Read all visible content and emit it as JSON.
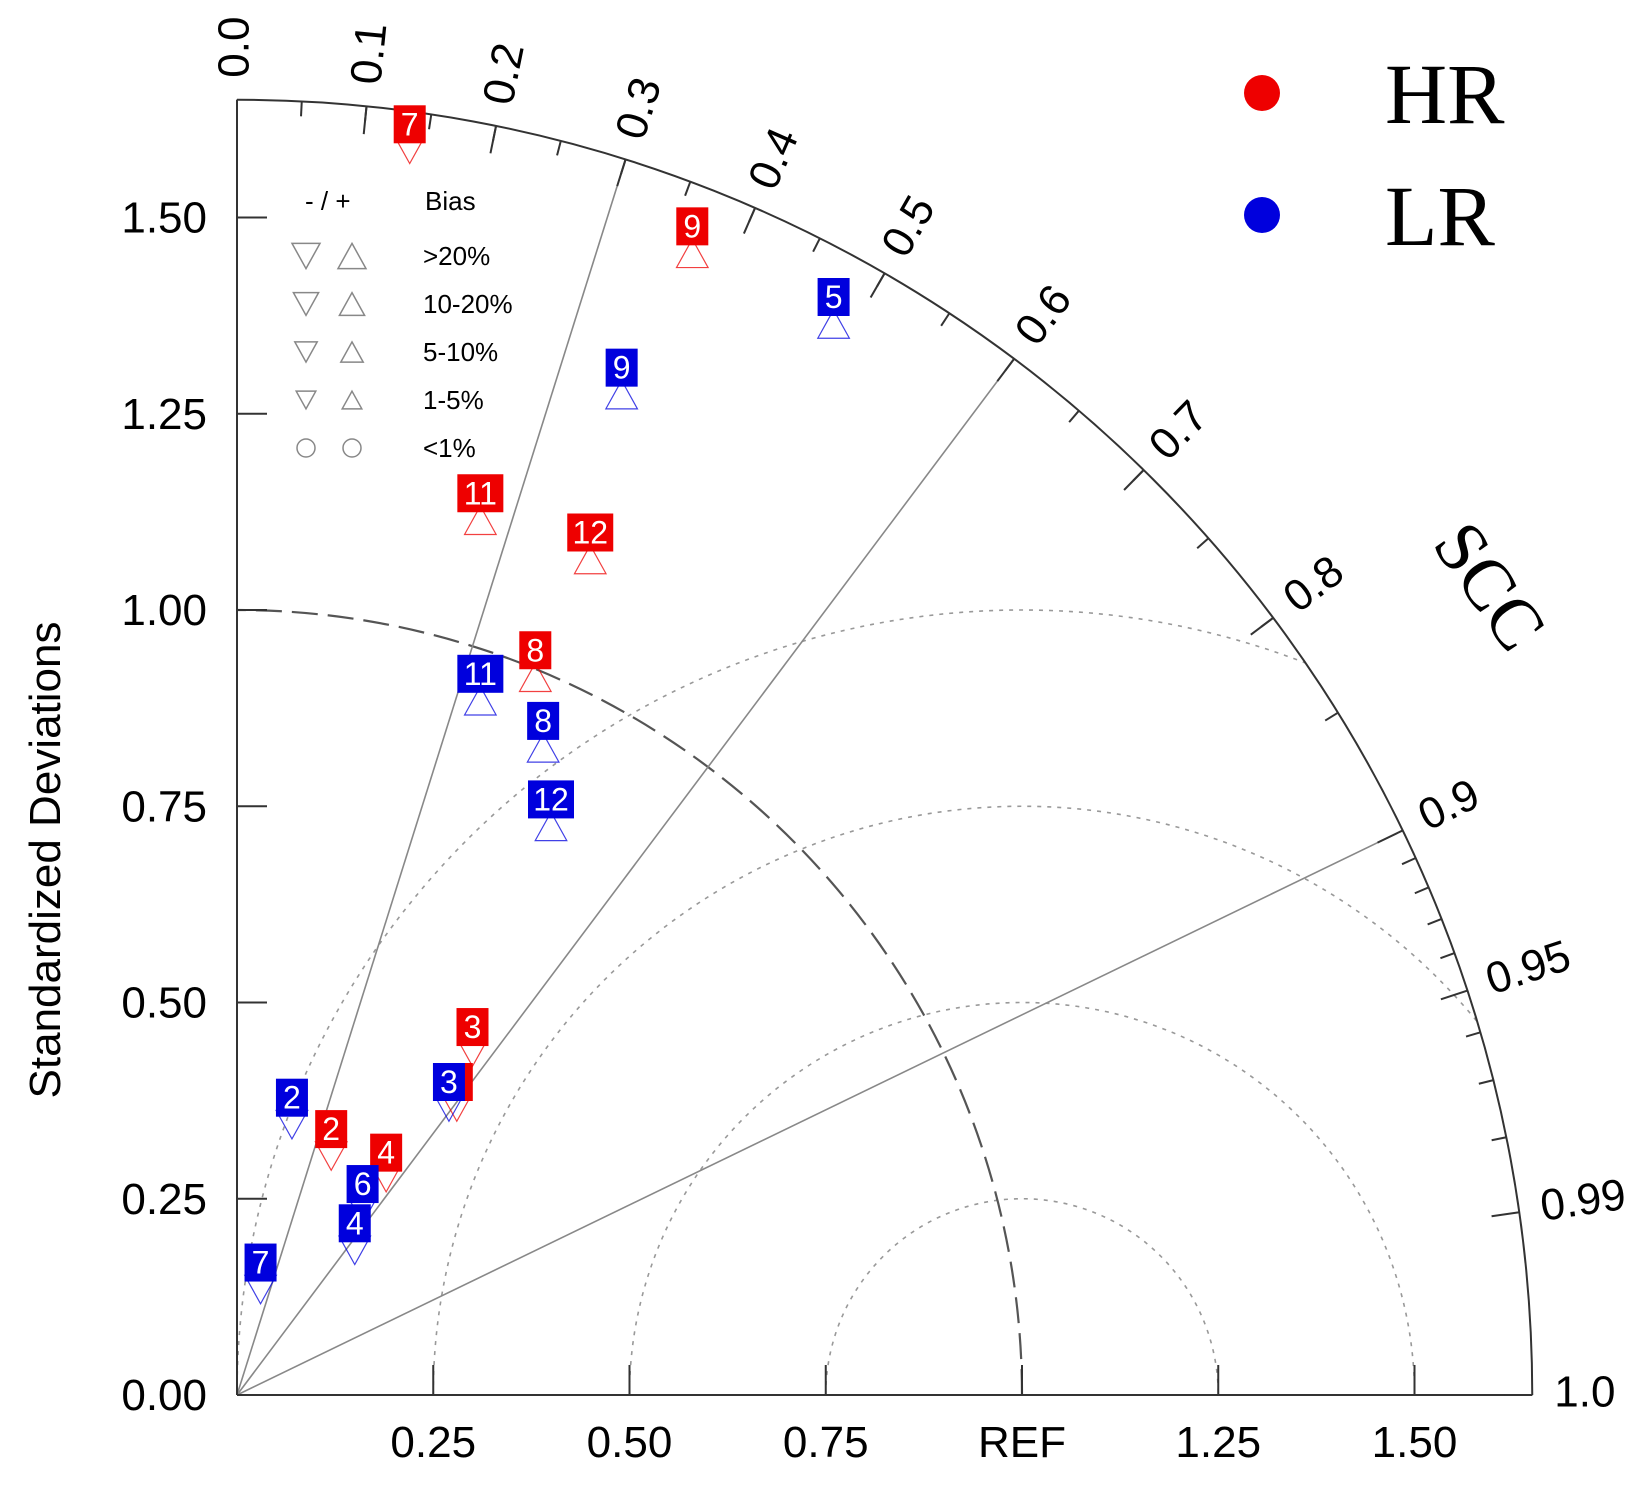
{
  "chart_data": {
    "type": "taylor-diagram",
    "ylabel": "Standardized Deviations",
    "std_range": [
      0,
      1.65
    ],
    "x_tick_labels": [
      "0.25",
      "0.50",
      "0.75",
      "REF",
      "1.25",
      "1.50"
    ],
    "x_tick_values": [
      0.25,
      0.5,
      0.75,
      1.0,
      1.25,
      1.5
    ],
    "y_tick_labels": [
      "0.00",
      "0.25",
      "0.50",
      "0.75",
      "1.00",
      "1.25",
      "1.50"
    ],
    "y_tick_values": [
      0,
      0.25,
      0.5,
      0.75,
      1.0,
      1.25,
      1.5
    ],
    "correlation_axis_label": "SCC",
    "correlation_labels": [
      "0.0",
      "0.1",
      "0.2",
      "0.3",
      "0.4",
      "0.5",
      "0.6",
      "0.7",
      "0.8",
      "0.9",
      "0.95",
      "0.99",
      "1.0"
    ],
    "correlation_values": [
      0.0,
      0.1,
      0.2,
      0.3,
      0.4,
      0.5,
      0.6,
      0.7,
      0.8,
      0.9,
      0.95,
      0.99,
      1.0
    ],
    "correlation_radial_lines": [
      0.3,
      0.6,
      0.9
    ],
    "centered_rms_contours": [
      0.25,
      0.5,
      0.75,
      1.0
    ],
    "reference_std": 1.0,
    "legend": {
      "position": "top-right",
      "entries": [
        {
          "name": "HR",
          "color": "#ee0000"
        },
        {
          "name": "LR",
          "color": "#0000dd"
        }
      ]
    },
    "bias_legend": {
      "header_sign": "- / +",
      "header_label": "Bias",
      "rows": [
        {
          "label": ">20%",
          "size": 1.0
        },
        {
          "label": "10-20%",
          "size": 0.8
        },
        {
          "label": "5-10%",
          "size": 0.6
        },
        {
          "label": "1-5%",
          "size": 0.4
        },
        {
          "label": "<1%",
          "size": 0.0
        }
      ]
    },
    "series": [
      {
        "name": "HR",
        "color": "#ee0000",
        "points": [
          {
            "label": "7",
            "x": 0.22,
            "y": 1.62,
            "bias": "-",
            "size": 0.6
          },
          {
            "label": "9",
            "x": 0.58,
            "y": 1.49,
            "bias": "+",
            "size": 0.8
          },
          {
            "label": "11",
            "x": 0.31,
            "y": 1.15,
            "bias": "+",
            "size": 0.8
          },
          {
            "label": "12",
            "x": 0.45,
            "y": 1.1,
            "bias": "+",
            "size": 0.8
          },
          {
            "label": "8",
            "x": 0.38,
            "y": 0.95,
            "bias": "+",
            "size": 0.8
          },
          {
            "label": "3",
            "x": 0.3,
            "y": 0.47,
            "bias": "-",
            "size": 0.6
          },
          {
            "label": "1",
            "x": 0.28,
            "y": 0.4,
            "bias": "-",
            "size": 0.6
          },
          {
            "label": "2",
            "x": 0.12,
            "y": 0.34,
            "bias": "-",
            "size": 0.8
          },
          {
            "label": "4",
            "x": 0.19,
            "y": 0.31,
            "bias": "-",
            "size": 0.6
          }
        ]
      },
      {
        "name": "LR",
        "color": "#0000dd",
        "points": [
          {
            "label": "5",
            "x": 0.76,
            "y": 1.4,
            "bias": "+",
            "size": 0.8
          },
          {
            "label": "9",
            "x": 0.49,
            "y": 1.31,
            "bias": "+",
            "size": 0.8
          },
          {
            "label": "11",
            "x": 0.31,
            "y": 0.92,
            "bias": "+",
            "size": 0.8
          },
          {
            "label": "8",
            "x": 0.39,
            "y": 0.86,
            "bias": "+",
            "size": 0.8
          },
          {
            "label": "12",
            "x": 0.4,
            "y": 0.76,
            "bias": "+",
            "size": 0.8
          },
          {
            "label": "3",
            "x": 0.27,
            "y": 0.4,
            "bias": "-",
            "size": 0.6
          },
          {
            "label": "2",
            "x": 0.07,
            "y": 0.38,
            "bias": "-",
            "size": 0.8
          },
          {
            "label": "6",
            "x": 0.16,
            "y": 0.27,
            "bias": "-",
            "size": 0.6
          },
          {
            "label": "4",
            "x": 0.15,
            "y": 0.22,
            "bias": "-",
            "size": 0.8
          },
          {
            "label": "7",
            "x": 0.03,
            "y": 0.17,
            "bias": "-",
            "size": 0.8
          }
        ]
      }
    ]
  }
}
